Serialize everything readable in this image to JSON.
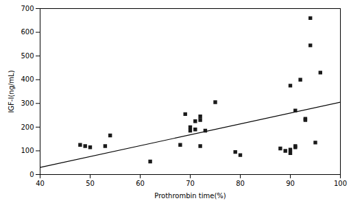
{
  "chart_data": {
    "type": "scatter",
    "x": [
      48,
      49,
      50,
      53,
      54,
      62,
      68,
      69,
      70,
      70,
      71,
      71,
      72,
      72,
      72,
      73,
      75,
      79,
      80,
      88,
      89,
      90,
      90,
      90,
      91,
      91,
      91,
      92,
      93,
      93,
      94,
      94,
      95,
      96
    ],
    "values": [
      125,
      120,
      115,
      120,
      165,
      55,
      125,
      255,
      200,
      185,
      225,
      190,
      230,
      245,
      120,
      185,
      305,
      95,
      82,
      110,
      100,
      90,
      375,
      105,
      120,
      115,
      270,
      400,
      235,
      230,
      545,
      660,
      135,
      430
    ],
    "color": "#1a1a1a",
    "marker": "square",
    "line": {
      "x": [
        40,
        100
      ],
      "values": [
        30,
        305
      ],
      "color": "#000000"
    },
    "xlabel": "Prothrombin time(%)",
    "ylabel": "IGF-I(ng/mL)",
    "xlim": [
      40,
      100
    ],
    "ylim": [
      0,
      700
    ],
    "xticks": [
      40,
      50,
      60,
      70,
      80,
      90,
      100
    ],
    "yticks": [
      0,
      100,
      200,
      300,
      400,
      500,
      600,
      700
    ],
    "grid": false
  }
}
